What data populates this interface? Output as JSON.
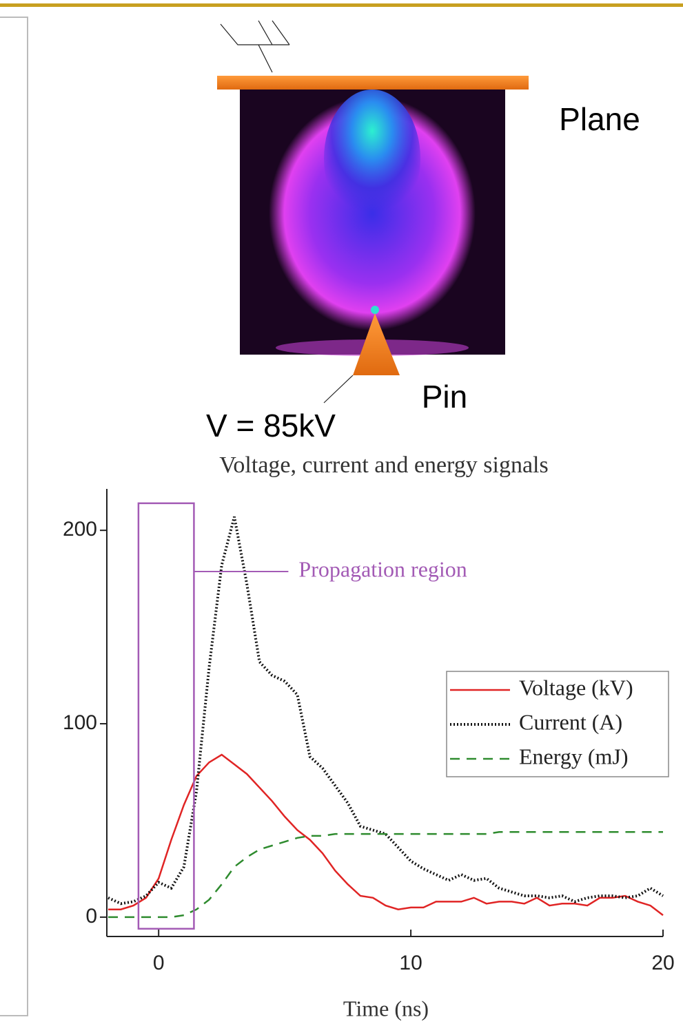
{
  "diagram": {
    "plane_label": "Plane",
    "pin_label": "Pin",
    "voltage_label": "V = 85kV"
  },
  "chart_data": {
    "type": "line",
    "title": "Voltage, current and energy signals",
    "xlabel": "Time (ns)",
    "x": [
      -2,
      -1.5,
      -1,
      -0.5,
      0,
      0.5,
      1,
      1.5,
      2,
      2.5,
      3,
      3.5,
      4,
      4.5,
      5,
      5.5,
      6,
      6.5,
      7,
      7.5,
      8,
      8.5,
      9,
      9.5,
      10,
      10.5,
      11,
      11.5,
      12,
      12.5,
      13,
      13.5,
      14,
      14.5,
      15,
      15.5,
      16,
      16.5,
      17,
      17.5,
      18,
      18.5,
      19,
      19.5,
      20
    ],
    "series": [
      {
        "name": "Voltage (kV)",
        "color": "#e02424",
        "dash": "solid",
        "values": [
          4,
          4,
          6,
          10,
          20,
          40,
          58,
          73,
          80,
          84,
          79,
          74,
          67,
          60,
          52,
          45,
          40,
          33,
          24,
          17,
          11,
          10,
          6,
          4,
          5,
          5,
          8,
          8,
          8,
          10,
          7,
          8,
          8,
          7,
          10,
          6,
          7,
          7,
          6,
          10,
          10,
          11,
          8,
          6,
          1
        ]
      },
      {
        "name": "Current (A)",
        "color": "#111111",
        "dash": "dotted",
        "values": [
          10,
          7,
          8,
          11,
          18,
          15,
          26,
          65,
          129,
          182,
          207,
          172,
          132,
          125,
          122,
          115,
          83,
          77,
          68,
          59,
          47,
          45,
          43,
          36,
          29,
          25,
          22,
          19,
          22,
          19,
          20,
          15,
          13,
          11,
          11,
          10,
          11,
          8,
          10,
          11,
          11,
          10,
          11,
          15,
          11
        ]
      },
      {
        "name": "Energy (mJ)",
        "color": "#2e8b2e",
        "dash": "dashed",
        "values": [
          0,
          0,
          0,
          0,
          0,
          0,
          1,
          4,
          9,
          17,
          26,
          31,
          35,
          37,
          39,
          41,
          42,
          42,
          43,
          43,
          43,
          43,
          43,
          43,
          43,
          43,
          43,
          43,
          43,
          43,
          43,
          44,
          44,
          44,
          44,
          44,
          44,
          44,
          44,
          44,
          44,
          44,
          44,
          44,
          44
        ]
      }
    ],
    "xlim": [
      -2,
      20
    ],
    "xticks": [
      0,
      10,
      20
    ],
    "ylim": [
      -10,
      220
    ],
    "yticks": [
      0,
      100,
      200
    ],
    "highlight": {
      "label": "Propagation region",
      "color": "#a35bb5",
      "x": [
        -0.8,
        1.4
      ],
      "y": [
        -6,
        214
      ]
    },
    "legend": "right"
  }
}
